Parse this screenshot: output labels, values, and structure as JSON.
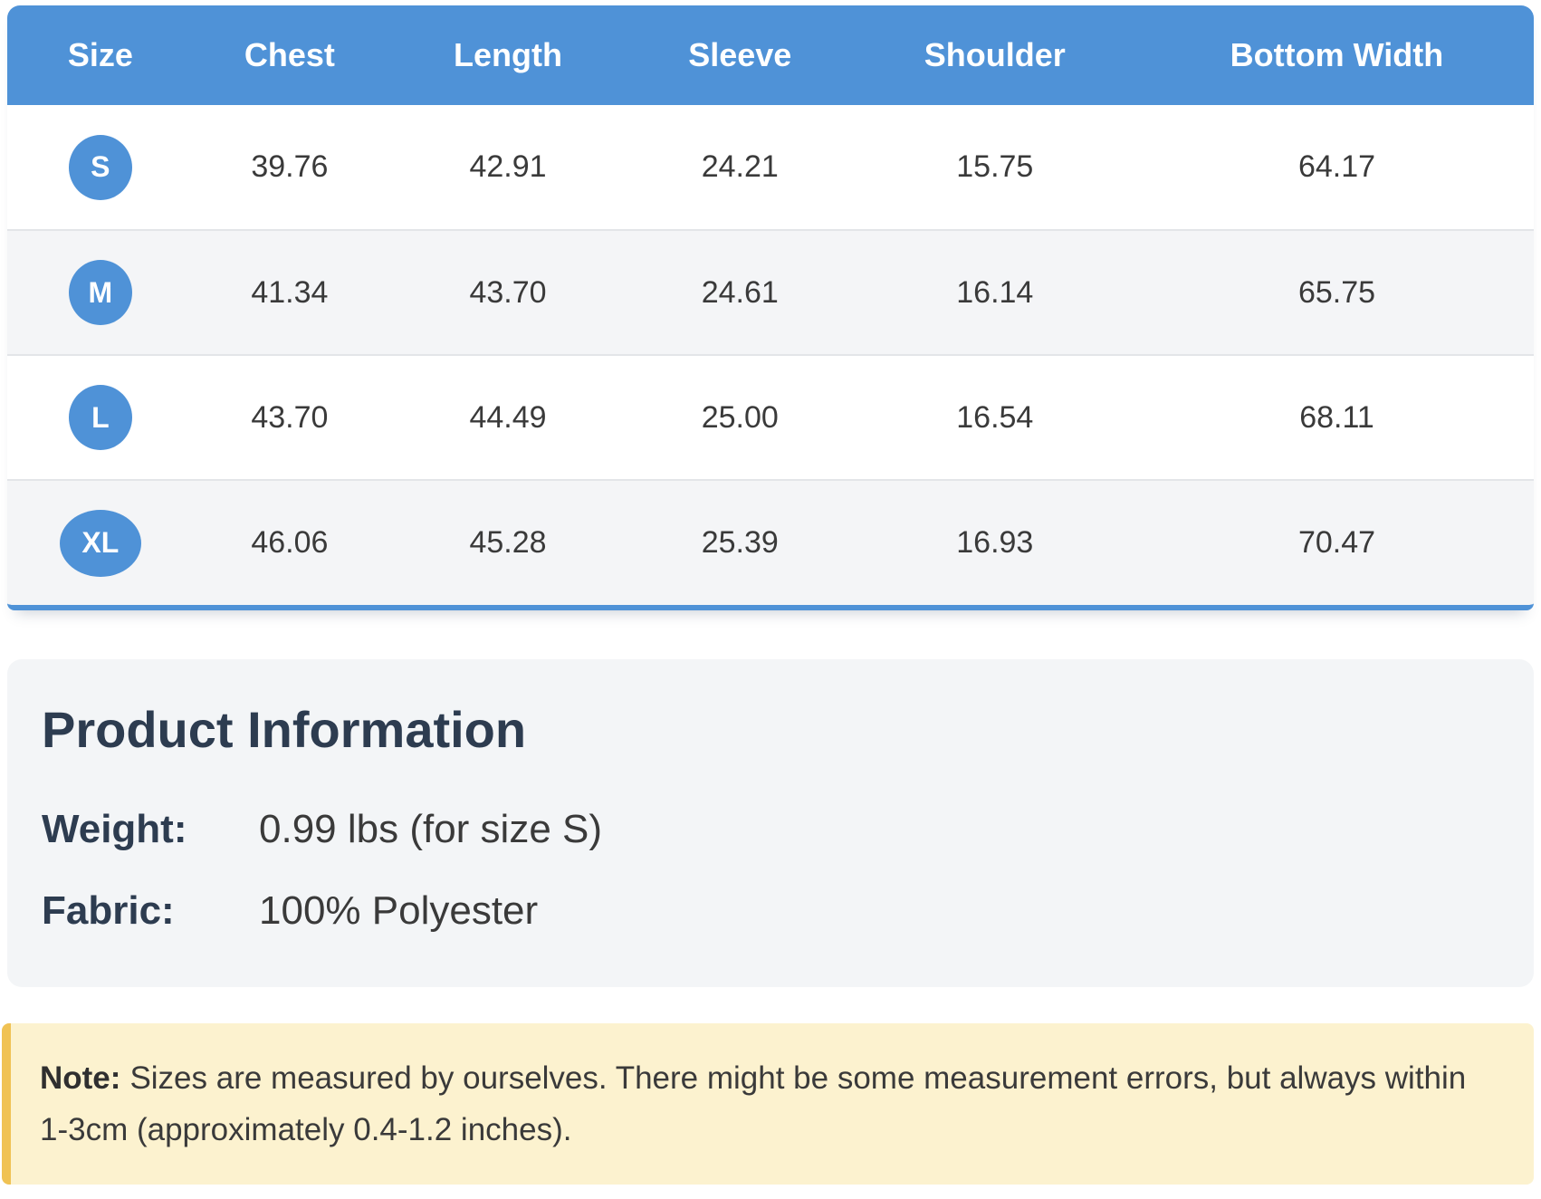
{
  "colors": {
    "blue": "#4f92d7",
    "navy": "#2d3c50",
    "text": "#3a3a3a",
    "stripe": "#f4f5f7",
    "card-bg": "#f3f5f7",
    "divider": "#e3e5e8",
    "note-bg": "#fcf2cf",
    "note-border": "#f0c254"
  },
  "size_chart": {
    "columns": [
      "Size",
      "Chest",
      "Length",
      "Sleeve",
      "Shoulder",
      "Bottom Width"
    ],
    "rows": [
      {
        "size": "S",
        "values": [
          "39.76",
          "42.91",
          "24.21",
          "15.75",
          "64.17"
        ]
      },
      {
        "size": "M",
        "values": [
          "41.34",
          "43.70",
          "24.61",
          "16.14",
          "65.75"
        ]
      },
      {
        "size": "L",
        "values": [
          "43.70",
          "44.49",
          "25.00",
          "16.54",
          "68.11"
        ]
      },
      {
        "size": "XL",
        "values": [
          "46.06",
          "45.28",
          "25.39",
          "16.93",
          "70.47"
        ]
      }
    ]
  },
  "product_info": {
    "title": "Product Information",
    "fields": [
      {
        "label": "Weight:",
        "value": "0.99 lbs (for size S)"
      },
      {
        "label": "Fabric:",
        "value": "100% Polyester"
      }
    ]
  },
  "note": {
    "label": "Note:",
    "text": "Sizes are measured by ourselves. There might be some measurement errors, but always within 1-3cm (approximately 0.4-1.2 inches)."
  }
}
